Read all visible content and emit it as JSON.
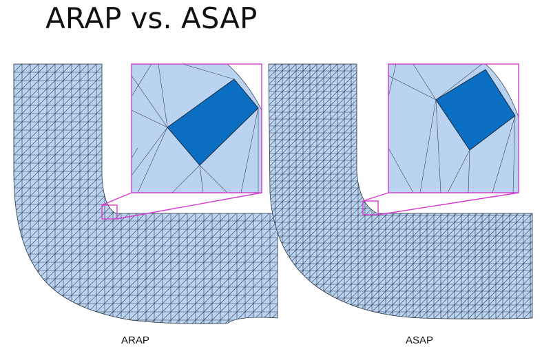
{
  "title": "ARAP vs. ASAP",
  "panels": [
    {
      "id": "arap",
      "label": "ARAP"
    },
    {
      "id": "asap",
      "label": "ASAP"
    }
  ],
  "colors": {
    "mesh_fill": "#b9d3f1",
    "mesh_line": "#2b3444",
    "highlight_fill": "#0a6ec2",
    "zoom_frame": "#d63bd0",
    "background": "#ffffff"
  }
}
